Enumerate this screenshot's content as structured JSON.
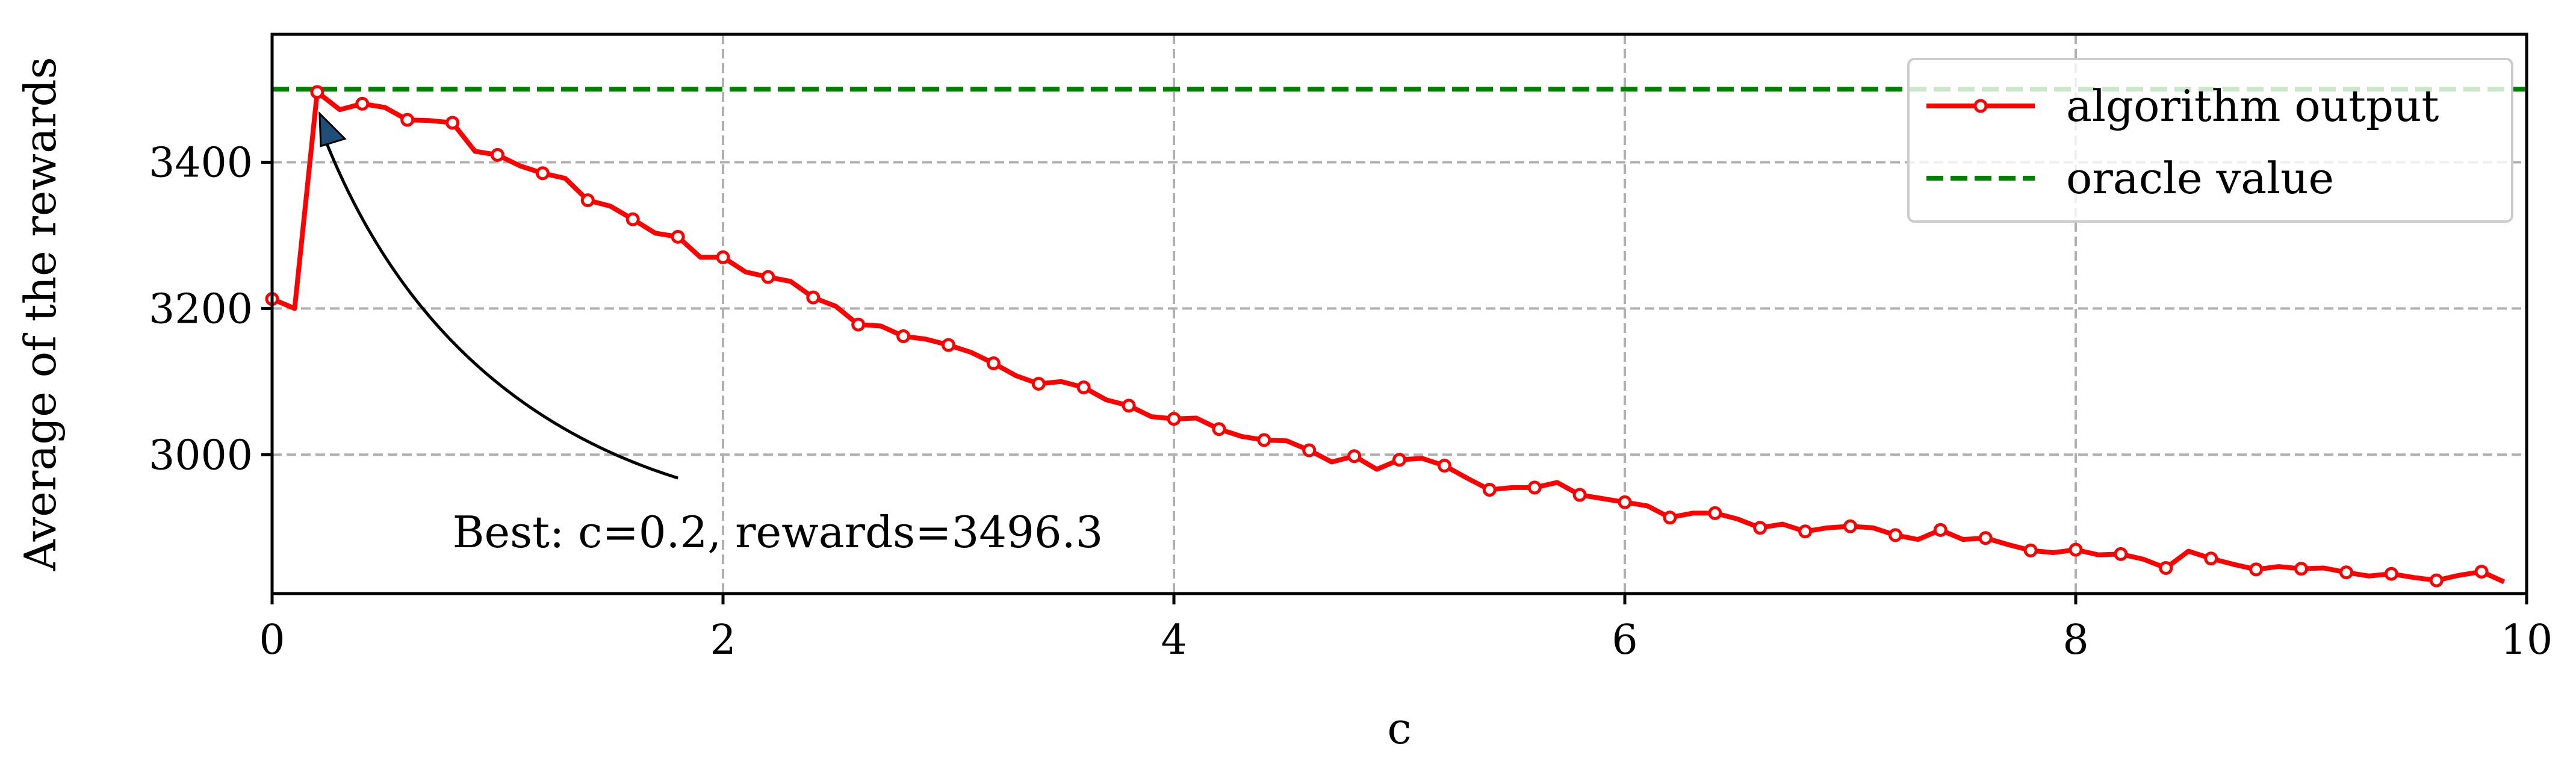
{
  "chart_data": {
    "type": "line",
    "xlabel": "c",
    "ylabel": "Average of the rewards",
    "xlim": [
      0,
      10
    ],
    "ylim": [
      2810,
      3575
    ],
    "xticks": [
      0,
      2,
      4,
      6,
      8,
      10
    ],
    "xtick_labels": [
      "0",
      "2",
      "4",
      "6",
      "8",
      "10"
    ],
    "yticks": [
      3000,
      3200,
      3400
    ],
    "ytick_labels": [
      "3000",
      "3200",
      "3400"
    ],
    "grid": true,
    "legend_position": "upper right",
    "series": [
      {
        "name": "algorithm output",
        "color": "#ff0000",
        "marker": "circle",
        "x": [
          0.0,
          0.1,
          0.2,
          0.3,
          0.4,
          0.5,
          0.6,
          0.7,
          0.8,
          0.9,
          1.0,
          1.1,
          1.2,
          1.3,
          1.4,
          1.5,
          1.6,
          1.7,
          1.8,
          1.9,
          2.0,
          2.1,
          2.2,
          2.3,
          2.4,
          2.5,
          2.6,
          2.7,
          2.8,
          2.9,
          3.0,
          3.1,
          3.2,
          3.3,
          3.4,
          3.5,
          3.6,
          3.7,
          3.8,
          3.9,
          4.0,
          4.1,
          4.2,
          4.3,
          4.4,
          4.5,
          4.6,
          4.7,
          4.8,
          4.9,
          5.0,
          5.1,
          5.2,
          5.3,
          5.4,
          5.5,
          5.6,
          5.7,
          5.8,
          5.9,
          6.0,
          6.1,
          6.2,
          6.3,
          6.4,
          6.5,
          6.6,
          6.7,
          6.8,
          6.9,
          7.0,
          7.1,
          7.2,
          7.3,
          7.4,
          7.5,
          7.6,
          7.7,
          7.8,
          7.9,
          8.0,
          8.1,
          8.2,
          8.3,
          8.4,
          8.5,
          8.6,
          8.7,
          8.8,
          8.9,
          9.0,
          9.1,
          9.2,
          9.3,
          9.4,
          9.5,
          9.6,
          9.7,
          9.8,
          9.9
        ],
        "values": [
          3213,
          3200,
          3496,
          3472,
          3480,
          3475,
          3458,
          3457,
          3454,
          3415,
          3410,
          3395,
          3385,
          3378,
          3348,
          3340,
          3322,
          3303,
          3298,
          3270,
          3270,
          3250,
          3243,
          3237,
          3215,
          3203,
          3178,
          3176,
          3162,
          3158,
          3150,
          3140,
          3125,
          3108,
          3097,
          3100,
          3092,
          3075,
          3067,
          3052,
          3049,
          3050,
          3035,
          3025,
          3020,
          3019,
          3006,
          2990,
          2998,
          2980,
          2993,
          2995,
          2985,
          2968,
          2952,
          2955,
          2955,
          2962,
          2945,
          2940,
          2935,
          2930,
          2914,
          2920,
          2920,
          2912,
          2900,
          2905,
          2895,
          2900,
          2902,
          2900,
          2890,
          2884,
          2897,
          2884,
          2886,
          2877,
          2869,
          2866,
          2870,
          2863,
          2864,
          2857,
          2845,
          2868,
          2858,
          2850,
          2843,
          2847,
          2844,
          2845,
          2839,
          2834,
          2837,
          2832,
          2828,
          2835,
          2840,
          2826
        ]
      },
      {
        "name": "oracle value",
        "color": "#008000",
        "line_style": "dashed",
        "y": 3500
      }
    ],
    "annotation": {
      "text": "Best: c=0.2, rewards=3496.3",
      "point": [
        0.2,
        3496.3
      ],
      "text_position": [
        0.8,
        2890
      ]
    }
  }
}
